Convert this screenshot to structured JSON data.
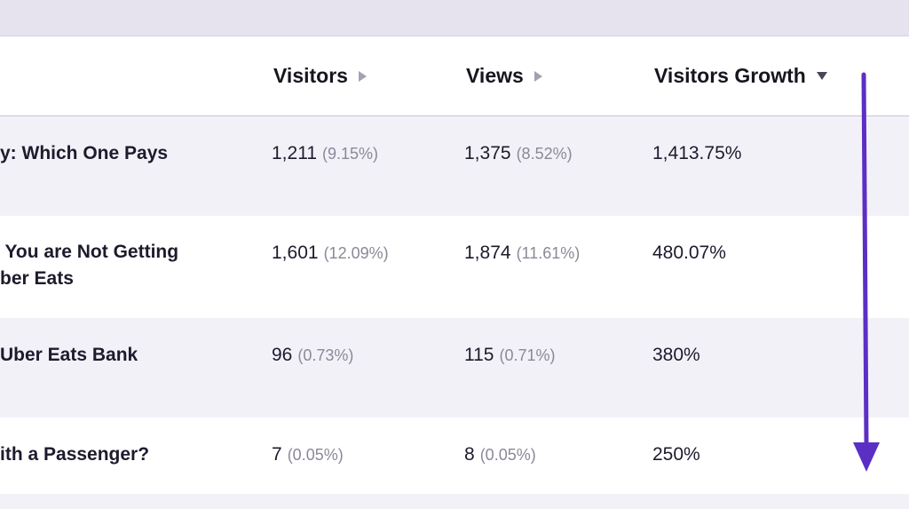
{
  "table": {
    "columns": [
      {
        "label": "Visitors",
        "sort": "none"
      },
      {
        "label": "Views",
        "sort": "none"
      },
      {
        "label": "Visitors Growth",
        "sort": "descending"
      }
    ],
    "rows": [
      {
        "title_lines": [
          "y: Which One Pays"
        ],
        "visitors": "1,211",
        "visitors_pct": "(9.15%)",
        "views": "1,375",
        "views_pct": "(8.52%)",
        "growth": "1,413.75%"
      },
      {
        "title_lines": [
          " You are Not Getting",
          "ber Eats"
        ],
        "visitors": "1,601",
        "visitors_pct": "(12.09%)",
        "views": "1,874",
        "views_pct": "(11.61%)",
        "growth": "480.07%"
      },
      {
        "title_lines": [
          "Uber Eats Bank"
        ],
        "visitors": "96",
        "visitors_pct": "(0.73%)",
        "views": "115",
        "views_pct": "(0.71%)",
        "growth": "380%"
      },
      {
        "title_lines": [
          "ith a Passenger?"
        ],
        "visitors": "7",
        "visitors_pct": "(0.05%)",
        "views": "8",
        "views_pct": "(0.05%)",
        "growth": "250%"
      }
    ]
  },
  "annotation": {
    "arrow_color": "#5b2fc4",
    "direction": "down"
  }
}
